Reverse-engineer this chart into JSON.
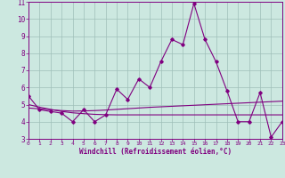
{
  "x": [
    0,
    1,
    2,
    3,
    4,
    5,
    6,
    7,
    8,
    9,
    10,
    11,
    12,
    13,
    14,
    15,
    16,
    17,
    18,
    19,
    20,
    21,
    22,
    23
  ],
  "y_main": [
    5.5,
    4.7,
    4.6,
    4.5,
    4.0,
    4.7,
    4.0,
    4.4,
    5.9,
    5.3,
    6.5,
    6.0,
    7.5,
    8.8,
    8.5,
    10.9,
    8.8,
    7.5,
    5.8,
    4.0,
    4.0,
    5.7,
    3.1,
    4.0
  ],
  "y_line1": [
    4.8,
    4.75,
    4.7,
    4.65,
    4.62,
    4.63,
    4.65,
    4.68,
    4.72,
    4.76,
    4.8,
    4.84,
    4.87,
    4.9,
    4.93,
    4.96,
    4.99,
    5.02,
    5.05,
    5.08,
    5.11,
    5.14,
    5.17,
    5.2
  ],
  "y_line2": [
    5.0,
    4.85,
    4.72,
    4.6,
    4.52,
    4.47,
    4.43,
    4.41,
    4.4,
    4.4,
    4.4,
    4.4,
    4.4,
    4.4,
    4.4,
    4.4,
    4.4,
    4.4,
    4.4,
    4.4,
    4.4,
    4.4,
    4.4,
    4.4
  ],
  "xlim": [
    0,
    23
  ],
  "ylim": [
    3,
    11
  ],
  "yticks": [
    3,
    4,
    5,
    6,
    7,
    8,
    9,
    10,
    11
  ],
  "xticks": [
    0,
    1,
    2,
    3,
    4,
    5,
    6,
    7,
    8,
    9,
    10,
    11,
    12,
    13,
    14,
    15,
    16,
    17,
    18,
    19,
    20,
    21,
    22,
    23
  ],
  "xlabel": "Windchill (Refroidissement éolien,°C)",
  "line_color": "#800080",
  "bg_color": "#cce8e0",
  "grid_color": "#9fbfb8"
}
